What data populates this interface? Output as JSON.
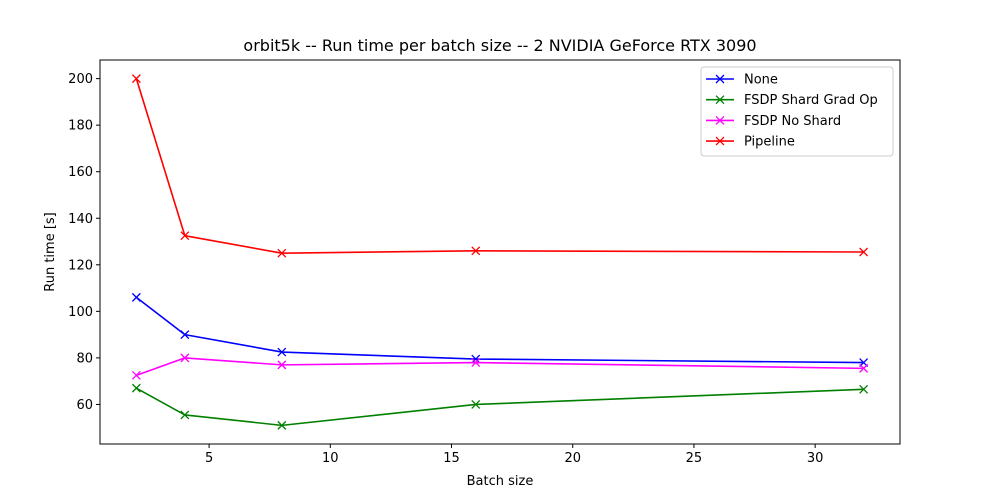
{
  "chart_data": {
    "type": "line",
    "title": "orbit5k -- Run time per batch size -- 2 NVIDIA GeForce RTX 3090",
    "xlabel": "Batch size",
    "ylabel": "Run time [s]",
    "x": [
      2,
      4,
      8,
      16,
      32
    ],
    "xlim": [
      0.5,
      33.5
    ],
    "ylim": [
      43,
      208
    ],
    "xticks": [
      5,
      10,
      15,
      20,
      25,
      30
    ],
    "yticks": [
      60,
      80,
      100,
      120,
      140,
      160,
      180,
      200
    ],
    "grid": false,
    "legend_position": "top-right",
    "marker": "x",
    "series": [
      {
        "name": "None",
        "color": "#0000ff",
        "values": [
          106,
          90,
          82.5,
          79.5,
          78
        ]
      },
      {
        "name": "FSDP Shard Grad Op",
        "color": "#008000",
        "values": [
          67,
          55.5,
          51,
          60,
          66.5
        ]
      },
      {
        "name": "FSDP No Shard",
        "color": "#ff00ff",
        "values": [
          72.5,
          80,
          77,
          78,
          75.5
        ]
      },
      {
        "name": "Pipeline",
        "color": "#ff0000",
        "values": [
          200,
          132.5,
          125,
          126,
          125.5
        ]
      }
    ]
  }
}
